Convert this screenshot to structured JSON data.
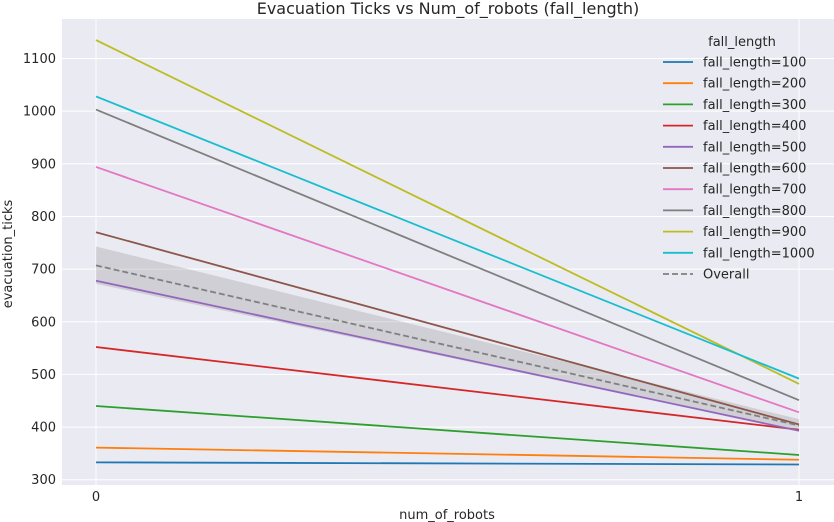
{
  "chart_data": {
    "type": "line",
    "title": "Evacuation Ticks vs Num_of_robots (fall_length)",
    "xlabel": "num_of_robots",
    "ylabel": "evacuation_ticks",
    "x": [
      0,
      1
    ],
    "x_ticks": [
      "0",
      "1"
    ],
    "ylim": [
      290,
      1175
    ],
    "y_ticks": [
      300,
      400,
      500,
      600,
      700,
      800,
      900,
      1000,
      1100
    ],
    "grid": true,
    "legend_title": "fall_length",
    "legend_position": "top-right",
    "series": [
      {
        "name": "fall_length=100",
        "color": "#1f77b4",
        "values": [
          333,
          329
        ]
      },
      {
        "name": "fall_length=200",
        "color": "#ff7f0e",
        "values": [
          361,
          338
        ]
      },
      {
        "name": "fall_length=300",
        "color": "#2ca02c",
        "values": [
          440,
          347
        ]
      },
      {
        "name": "fall_length=400",
        "color": "#d62728",
        "values": [
          552,
          395
        ]
      },
      {
        "name": "fall_length=500",
        "color": "#9467bd",
        "values": [
          678,
          393
        ]
      },
      {
        "name": "fall_length=600",
        "color": "#8c564b",
        "values": [
          770,
          405
        ]
      },
      {
        "name": "fall_length=700",
        "color": "#e377c2",
        "values": [
          894,
          428
        ]
      },
      {
        "name": "fall_length=800",
        "color": "#7f7f7f",
        "values": [
          1003,
          451
        ]
      },
      {
        "name": "fall_length=900",
        "color": "#bcbd22",
        "values": [
          1135,
          482
        ]
      },
      {
        "name": "fall_length=1000",
        "color": "#17becf",
        "values": [
          1028,
          492
        ]
      },
      {
        "name": "Overall",
        "color": "#808080",
        "dashed": true,
        "values": [
          707,
          403
        ],
        "band_lower": [
          672,
          393
        ],
        "band_upper": [
          743,
          415
        ]
      }
    ]
  }
}
